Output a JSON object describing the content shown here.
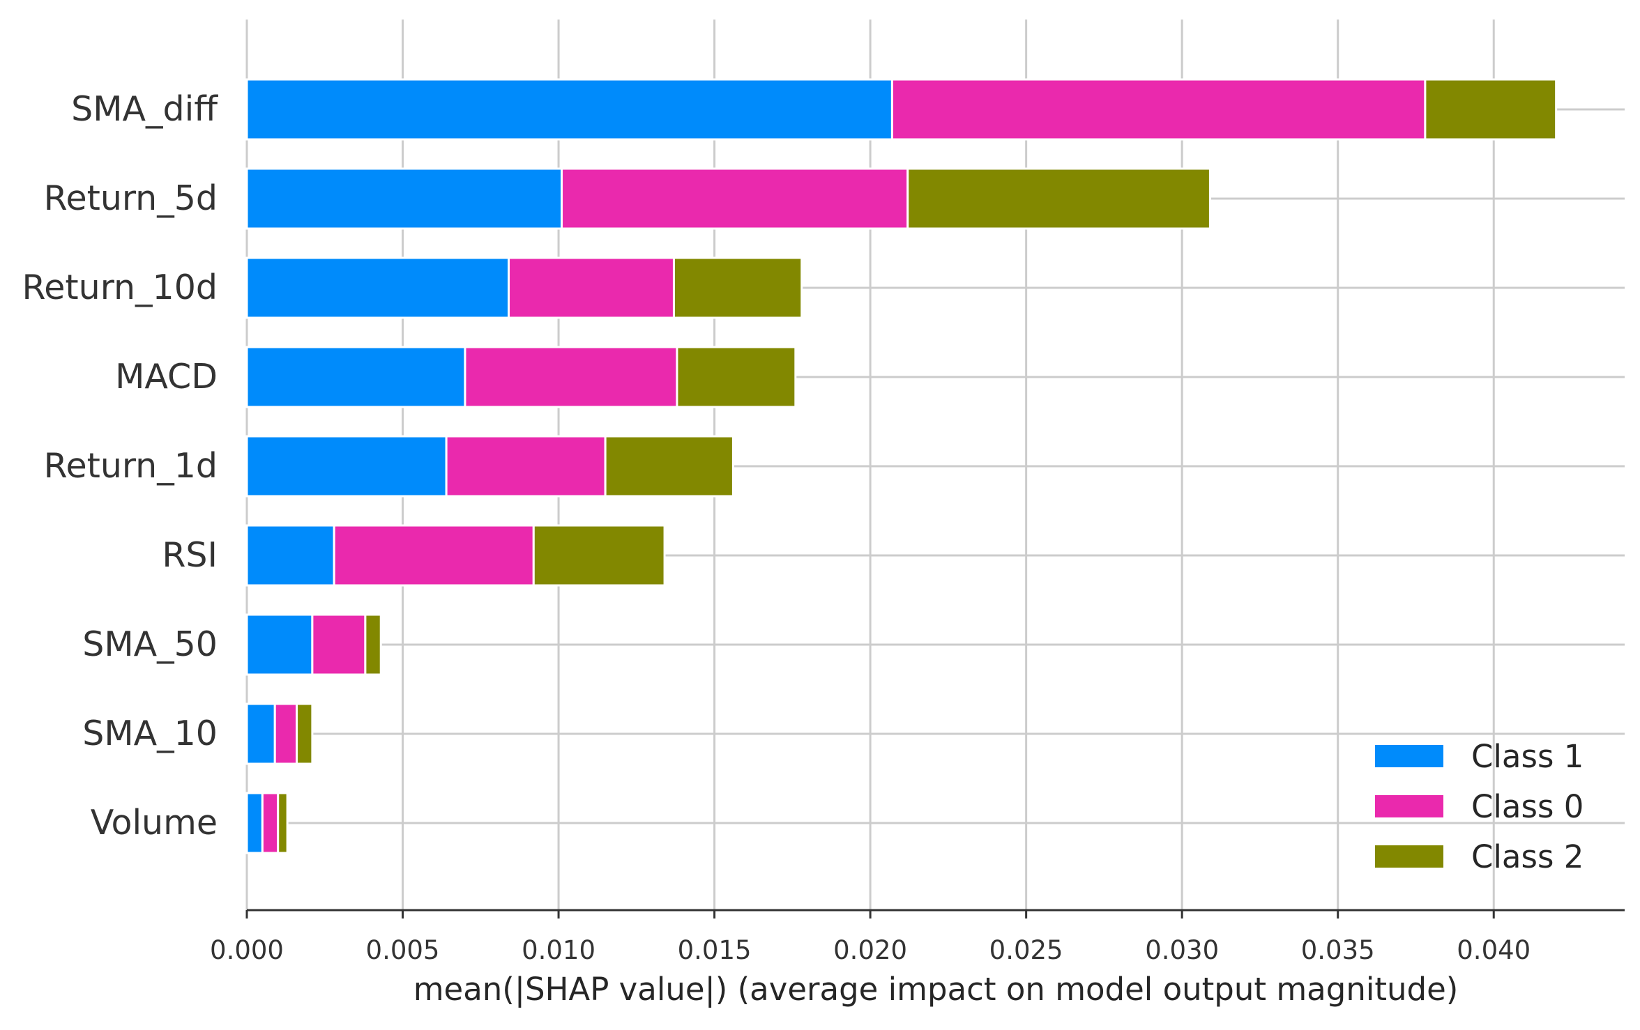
{
  "chart_data": {
    "type": "bar",
    "orientation": "horizontal",
    "stacked": true,
    "categories": [
      "SMA_diff",
      "Return_5d",
      "Return_10d",
      "MACD",
      "Return_1d",
      "RSI",
      "SMA_50",
      "SMA_10",
      "Volume"
    ],
    "series": [
      {
        "name": "Class 1",
        "color": "#008BFB",
        "values": [
          0.0207,
          0.0101,
          0.0084,
          0.007,
          0.0064,
          0.0028,
          0.0021,
          0.0009,
          0.0005
        ]
      },
      {
        "name": "Class 0",
        "color": "#EA29AD",
        "values": [
          0.0171,
          0.0111,
          0.0053,
          0.0068,
          0.0051,
          0.0064,
          0.0017,
          0.0007,
          0.0005
        ]
      },
      {
        "name": "Class 2",
        "color": "#828800",
        "values": [
          0.0042,
          0.0097,
          0.0041,
          0.0038,
          0.0041,
          0.0042,
          0.0005,
          0.0005,
          0.0003
        ]
      }
    ],
    "xlim": [
      0.0,
      0.0442
    ],
    "xticks": [
      "0.000",
      "0.005",
      "0.010",
      "0.015",
      "0.020",
      "0.025",
      "0.030",
      "0.035",
      "0.040"
    ],
    "xtick_values": [
      0.0,
      0.005,
      0.01,
      0.015,
      0.02,
      0.025,
      0.03,
      0.035,
      0.04
    ],
    "xlabel": "mean(|SHAP value|) (average impact on model output magnitude)",
    "ylabel": "",
    "title": "",
    "grid": true,
    "legend_position": "lower-right"
  }
}
